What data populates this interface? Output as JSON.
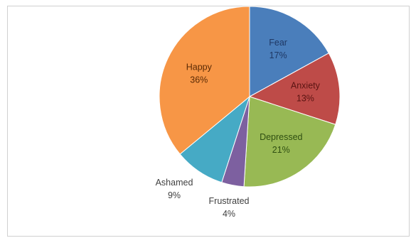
{
  "chart_data": {
    "type": "pie",
    "title": "",
    "categories": [
      "Fear",
      "Anxiety",
      "Depressed",
      "Frustrated",
      "Ashamed",
      "Happy"
    ],
    "values": [
      17,
      13,
      21,
      4,
      9,
      36
    ],
    "labels": [
      "17%",
      "13%",
      "21%",
      "4%",
      "9%",
      "36%"
    ],
    "colors": [
      "#4a7ebb",
      "#be4b48",
      "#98b954",
      "#7d60a0",
      "#46aac5",
      "#f79646"
    ],
    "label_colors": [
      "#1f3864",
      "#5a1412",
      "#2f4f12",
      "#404040",
      "#404040",
      "#5a2a05"
    ],
    "label_placement": [
      "inside",
      "inside",
      "inside",
      "outside",
      "outside",
      "inside"
    ],
    "start_angle_deg": 0,
    "direction": "clockwise",
    "legend": "none"
  }
}
